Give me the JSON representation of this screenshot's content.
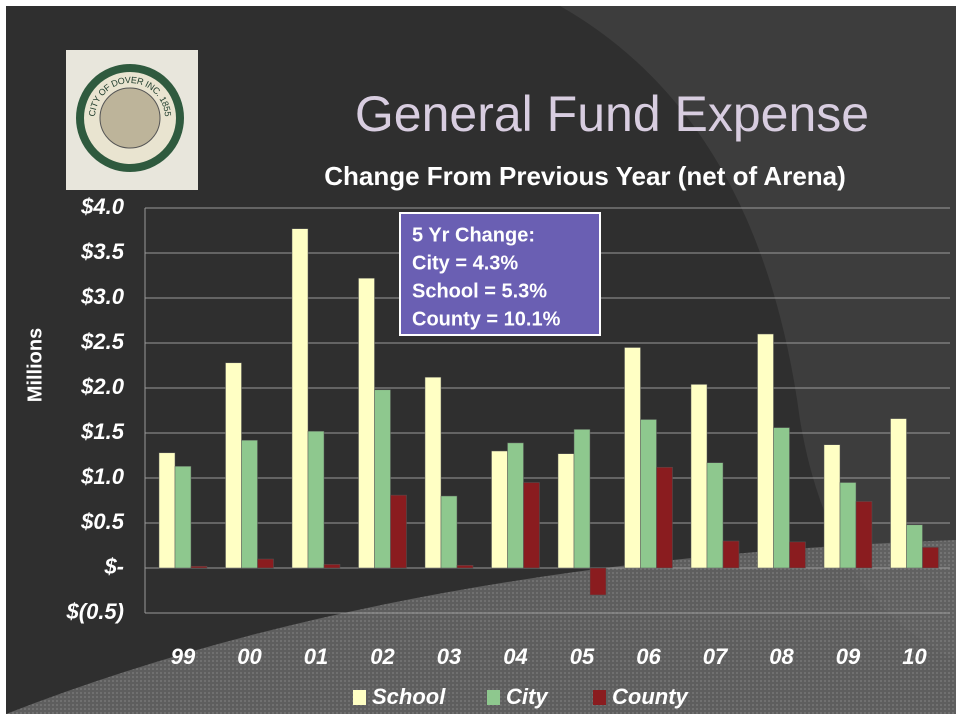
{
  "seal_text": "CITY OF DOVER INC. 1855",
  "chart_data": {
    "type": "bar",
    "title": "General Fund Expense",
    "subtitle": "Change From Previous Year (net of Arena)",
    "y_label": "Millions",
    "annotation": [
      "5 Yr Change:",
      "City = 4.3%",
      "School = 5.3%",
      "County = 10.1%"
    ],
    "categories": [
      "99",
      "00",
      "01",
      "02",
      "03",
      "04",
      "05",
      "06",
      "07",
      "08",
      "09",
      "10"
    ],
    "series": [
      {
        "name": "School",
        "color": "#ffffc4",
        "values": [
          1.28,
          2.28,
          3.77,
          3.22,
          2.12,
          1.3,
          1.27,
          2.45,
          2.04,
          2.6,
          1.37,
          1.66
        ]
      },
      {
        "name": "City",
        "color": "#8ec88e",
        "values": [
          1.13,
          1.42,
          1.52,
          1.98,
          0.8,
          1.39,
          1.54,
          1.65,
          1.17,
          1.56,
          0.95,
          0.48
        ]
      },
      {
        "name": "County",
        "color": "#8a1c1f",
        "values": [
          0.02,
          0.1,
          0.04,
          0.81,
          0.03,
          0.95,
          -0.3,
          1.12,
          0.3,
          0.29,
          0.74,
          0.23
        ]
      }
    ],
    "ylim": [
      -0.5,
      4.0
    ],
    "yticks": [
      {
        "value": -0.5,
        "label": "$(0.5)"
      },
      {
        "value": 0,
        "label": "$-"
      },
      {
        "value": 0.5,
        "label": "$0.5"
      },
      {
        "value": 1.0,
        "label": "$1.0"
      },
      {
        "value": 1.5,
        "label": "$1.5"
      },
      {
        "value": 2.0,
        "label": "$2.0"
      },
      {
        "value": 2.5,
        "label": "$2.5"
      },
      {
        "value": 3.0,
        "label": "$3.0"
      },
      {
        "value": 3.5,
        "label": "$3.5"
      },
      {
        "value": 4.0,
        "label": "$4.0"
      }
    ],
    "grid": true,
    "legend": "bottom"
  }
}
